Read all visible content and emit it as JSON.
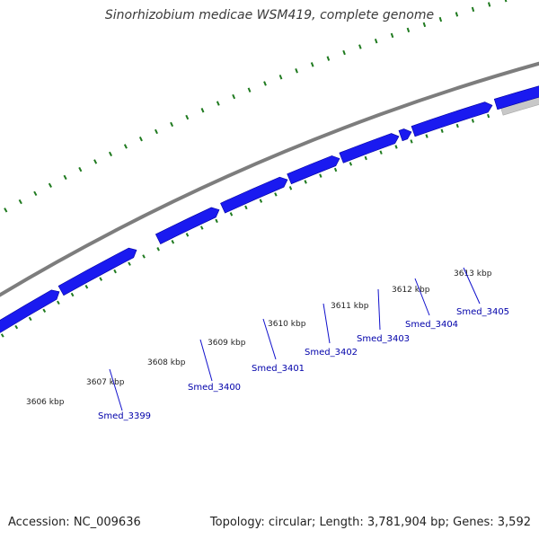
{
  "title": "Sinorhizobium medicae WSM419, complete genome",
  "footer": {
    "accession": "Accession: NC_009636",
    "summary": "Topology: circular; Length: 3,781,904 bp; Genes: 3,592"
  },
  "colors": {
    "backbone": "#7d7d7d",
    "gene_fill": "#1a1af0",
    "gene_edge": "#0000a0",
    "ticks": "#1f7a1f",
    "other_strand": "#c8c8c8",
    "label": "#0000aa"
  },
  "kbp_ticks": [
    "3606 kbp",
    "3607 kbp",
    "3608 kbp",
    "3609 kbp",
    "3610 kbp",
    "3611 kbp",
    "3612 kbp",
    "3613 kbp"
  ],
  "genes": [
    "Smed_3399",
    "Smed_3400",
    "Smed_3401",
    "Smed_3402",
    "Smed_3403",
    "Smed_3404",
    "Smed_3405"
  ]
}
